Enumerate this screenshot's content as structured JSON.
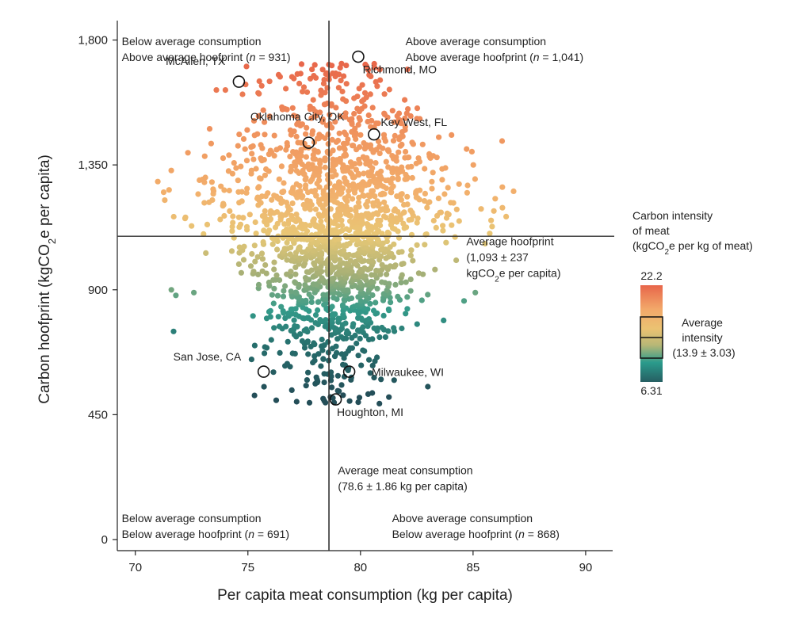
{
  "chart_data": {
    "type": "scatter",
    "xlabel": "Per capita meat consumption (kg per capita)",
    "ylabel": "Carbon hoofprint (kgCO2e per capita)",
    "xlim": [
      69.2,
      91.2
    ],
    "ylim": [
      -40,
      1870
    ],
    "x_ticks": [
      70,
      75,
      80,
      85,
      90
    ],
    "y_ticks": [
      0,
      450,
      900,
      1350,
      1800
    ],
    "x_tick_labels": [
      "70",
      "75",
      "80",
      "85",
      "90"
    ],
    "y_tick_labels": [
      "0",
      "450",
      "900",
      "1,350",
      "1,800"
    ],
    "average_consumption": 78.6,
    "average_hoofprint": 1093,
    "quadrants": [
      {
        "line1": "Below average consumption",
        "line2_pre": "Above average hoofprint (",
        "n_symbol": "n",
        "line2_post": " = 931)",
        "x": 69.4,
        "y": 1830
      },
      {
        "line1": "Above average consumption",
        "line2_pre": "Above average hoofprint (",
        "n_symbol": "n",
        "line2_post": " = 1,041)",
        "x": 82.0,
        "y": 1830
      },
      {
        "line1": "Below average consumption",
        "line2_pre": "Below average hoofprint (",
        "n_symbol": "n",
        "line2_post": " = 691)",
        "x": 69.4,
        "y": 20
      },
      {
        "line1": "Above average consumption",
        "line2_pre": "Below average hoofprint (",
        "n_symbol": "n",
        "line2_post": " = 868)",
        "x": 81.4,
        "y": 20
      }
    ],
    "avg_hoofprint_note": {
      "line1": "Average hoofprint",
      "line2": "(1,093 ± 237",
      "line3_pre": "kgCO",
      "line3_sub": "2",
      "line3_post": "e per capita)",
      "x": 84.7,
      "y": 1060
    },
    "avg_consumption_note": {
      "line1": "Average meat consumption",
      "line2": "(78.6 ± 1.86 kg per capita)",
      "x": 79.0,
      "y": 235
    },
    "labeled_cities": [
      {
        "name": "McAllen, TX",
        "x": 74.6,
        "y": 1650,
        "label_x": 74.0,
        "label_y": 1710,
        "anchor": "end"
      },
      {
        "name": "Richmond, MO",
        "x": 79.9,
        "y": 1740,
        "label_x": 80.1,
        "label_y": 1680,
        "anchor": "start"
      },
      {
        "name": "Oklahoma City, OK",
        "x": 77.7,
        "y": 1430,
        "label_x": 77.2,
        "label_y": 1510,
        "anchor": "middle"
      },
      {
        "name": "Key West, FL",
        "x": 80.6,
        "y": 1460,
        "label_x": 80.9,
        "label_y": 1490,
        "anchor": "start"
      },
      {
        "name": "San Jose, CA",
        "x": 75.7,
        "y": 605,
        "label_x": 74.7,
        "label_y": 645,
        "anchor": "end"
      },
      {
        "name": "Milwaukee, WI",
        "x": 79.5,
        "y": 605,
        "label_x": 80.5,
        "label_y": 590,
        "anchor": "start"
      },
      {
        "name": "Houghton, MI",
        "x": 78.9,
        "y": 505,
        "label_x": 78.95,
        "label_y": 445,
        "anchor": "start"
      }
    ],
    "colorbar": {
      "title_line1": "Carbon intensity",
      "title_line2": "of meat",
      "title_line3_pre": "(kgCO",
      "title_line3_sub": "2",
      "title_line3_post": "e per kg of meat)",
      "max_label": "22.2",
      "min_label": "6.31",
      "avg_line1": "Average",
      "avg_line2": "intensity",
      "avg_line3": "(13.9 ± 3.03)",
      "colors": [
        "#e8664a",
        "#f2a96a",
        "#e6c878",
        "#9aa874",
        "#2a9b8c",
        "#265e62"
      ]
    },
    "scatter_generation": {
      "seed": 12345,
      "n_points": 1800,
      "note": "point cloud"
    }
  }
}
